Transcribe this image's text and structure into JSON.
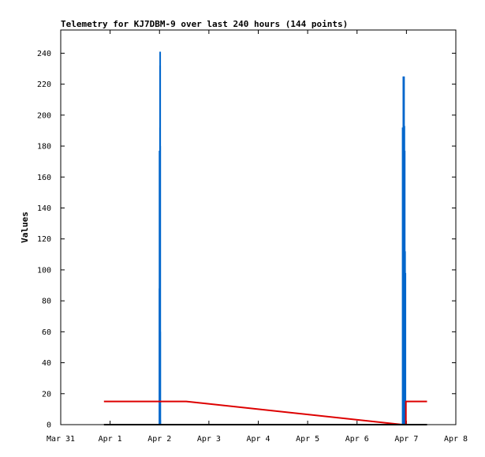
{
  "chart_data": {
    "type": "line",
    "title": "Telemetry for KJ7DBM-9 over last 240 hours (144 points)",
    "xlabel": "",
    "ylabel": "Values",
    "xlim": [
      "Mar 31",
      "Apr 8"
    ],
    "ylim": [
      0,
      255
    ],
    "x_ticks": [
      "Mar 31",
      "Apr 1",
      "Apr 2",
      "Apr 3",
      "Apr 4",
      "Apr 5",
      "Apr 6",
      "Apr 7",
      "Apr 8"
    ],
    "y_ticks": [
      0,
      20,
      40,
      60,
      80,
      100,
      120,
      140,
      160,
      180,
      200,
      220,
      240
    ],
    "grid": false,
    "legend": "none",
    "series": [
      {
        "color": "#0066cc",
        "style": "impulse",
        "x": [
          "Apr 2 00:00",
          "Apr 2 00:01",
          "Apr 2 00:15",
          "Apr 2 00:18",
          "Apr 2 00:19",
          "Apr 2 00:20",
          "Apr 2 00:21",
          "Apr 2 00:22",
          "Apr 6 22:10",
          "Apr 6 22:20",
          "Apr 6 22:30",
          "Apr 6 22:40",
          "Apr 6 22:50",
          "Apr 6 23:00",
          "Apr 6 23:05",
          "Apr 6 23:10",
          "Apr 6 23:15",
          "Apr 6 23:20",
          "Apr 6 23:30"
        ],
        "values": [
          88,
          177,
          192,
          232,
          241,
          180,
          60,
          3,
          192,
          157,
          225,
          177,
          225,
          193,
          150,
          177,
          98,
          112,
          98
        ]
      },
      {
        "color": "#dd0000",
        "style": "line",
        "x": [
          "Mar 31 21:00",
          "Apr 2 13:00",
          "Apr 6 22:00",
          "Apr 6 23:45",
          "Apr 6 23:45",
          "Apr 7 10:00"
        ],
        "values": [
          15,
          15,
          0,
          0,
          15,
          15
        ]
      },
      {
        "color": "#000000",
        "style": "line",
        "x": [
          "Mar 31 21:00",
          "Apr 7 10:00"
        ],
        "values": [
          0,
          0
        ]
      }
    ]
  }
}
